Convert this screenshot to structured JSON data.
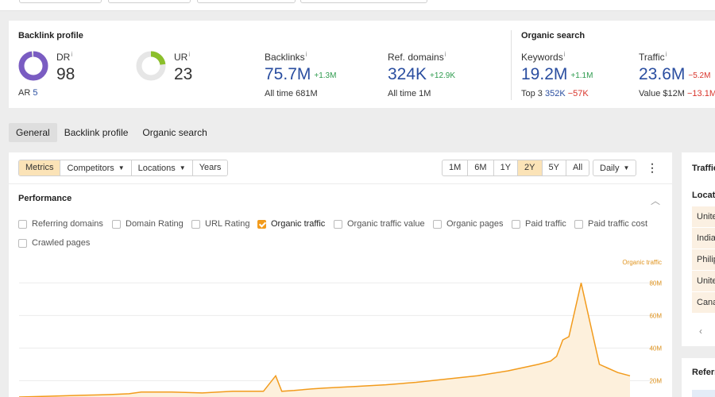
{
  "overview": {
    "backlink_profile": {
      "title": "Backlink profile",
      "dr": {
        "label": "DR",
        "info": "i",
        "value": "98",
        "ring_fill": 0.98,
        "color": "#7a5cc2"
      },
      "ar": {
        "label": "AR",
        "value": "5"
      },
      "ur": {
        "label": "UR",
        "info": "i",
        "value": "23",
        "ring_fill": 0.23,
        "color": "#8bbf2b"
      },
      "backlinks": {
        "label": "Backlinks",
        "info": "i",
        "value": "75.7M",
        "delta": "+1.3M",
        "sub_label": "All time",
        "sub_value": "681M"
      },
      "ref_domains": {
        "label": "Ref. domains",
        "info": "i",
        "value": "324K",
        "delta": "+12.9K",
        "sub_label": "All time",
        "sub_value": "1M"
      }
    },
    "organic_search": {
      "title": "Organic search",
      "keywords": {
        "label": "Keywords",
        "info": "i",
        "value": "19.2M",
        "delta": "+1.1M",
        "sub_label": "Top 3",
        "sub_value": "352K",
        "sub_delta": "−57K"
      },
      "traffic": {
        "label": "Traffic",
        "info": "i",
        "value": "23.6M",
        "delta": "−5.2M",
        "sub_label": "Value",
        "sub_value": "$12M",
        "sub_delta": "−13.1M"
      }
    }
  },
  "tabs": [
    "General",
    "Backlink profile",
    "Organic search"
  ],
  "toolbar": {
    "metrics": "Metrics",
    "competitors": "Competitors",
    "locations": "Locations",
    "years": "Years",
    "ranges": [
      "1M",
      "6M",
      "1Y",
      "2Y",
      "5Y",
      "All"
    ],
    "selected_range": "2Y",
    "granularity": "Daily"
  },
  "performance": {
    "title": "Performance",
    "checkboxes": [
      {
        "label": "Referring domains",
        "checked": false
      },
      {
        "label": "Domain Rating",
        "checked": false
      },
      {
        "label": "URL Rating",
        "checked": false
      },
      {
        "label": "Organic traffic",
        "checked": true
      },
      {
        "label": "Organic traffic value",
        "checked": false
      },
      {
        "label": "Organic pages",
        "checked": false
      },
      {
        "label": "Paid traffic",
        "checked": false
      },
      {
        "label": "Paid traffic cost",
        "checked": false
      },
      {
        "label": "Crawled pages",
        "checked": false
      }
    ]
  },
  "chart_data": {
    "type": "area",
    "series": [
      {
        "name": "Organic traffic",
        "color": "#f29b1c",
        "x": [
          0,
          5,
          10,
          15,
          18,
          20,
          25,
          30,
          35,
          40,
          42,
          43,
          45,
          48,
          50,
          55,
          60,
          65,
          70,
          75,
          80,
          85,
          87,
          88,
          89,
          90,
          92,
          95,
          98,
          100
        ],
        "values": [
          10,
          10.5,
          11,
          11.5,
          12,
          13,
          13,
          12.5,
          13.5,
          13.5,
          23,
          13.5,
          14,
          15,
          15.5,
          16.5,
          17.5,
          19,
          21,
          23,
          26,
          30,
          32,
          35,
          45,
          47,
          80,
          30,
          25,
          23
        ]
      }
    ],
    "yticks": [
      "20M",
      "40M",
      "60M",
      "80M"
    ],
    "ylim": [
      10,
      85
    ]
  },
  "sidebar": {
    "traffic_title": "Traffic",
    "locations_header": "Location",
    "locations": [
      "United",
      "India",
      "Philippines",
      "United",
      "Canada"
    ],
    "prev": "‹",
    "referring_title": "Referring"
  }
}
